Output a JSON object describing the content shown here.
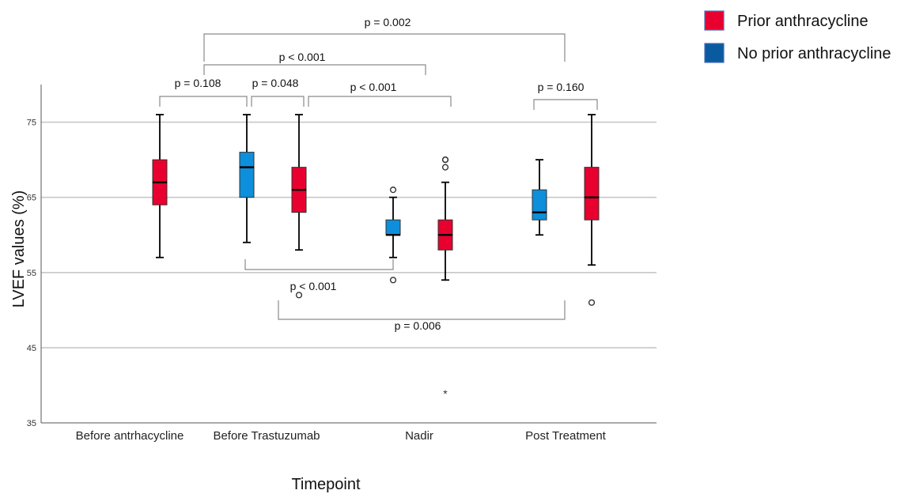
{
  "chart_data": {
    "type": "box",
    "ylabel": "LVEF values (%)",
    "xlabel": "Timepoint",
    "ylim": [
      35,
      80
    ],
    "yticks": [
      35,
      45,
      55,
      65,
      75
    ],
    "categories": [
      "Before antrhacycline",
      "Before Trastuzumab",
      "Nadir",
      "Post Treatment"
    ],
    "grid": true,
    "legend_position": "top-right",
    "series": [
      {
        "name": "Prior anthracycline",
        "color": "#e8002f"
      },
      {
        "name": "No prior anthracycline",
        "color": "#0d8fdb",
        "legend_color": "#0a5aa0"
      }
    ],
    "boxes": [
      {
        "category": "Before antrhacycline",
        "series": "Prior anthracycline",
        "min": 57,
        "q1": 64,
        "median": 67,
        "q3": 70,
        "max": 76,
        "outliers": [],
        "extremes": []
      },
      {
        "category": "Before Trastuzumab",
        "series": "No prior anthracycline",
        "min": 59,
        "q1": 65,
        "median": 69,
        "q3": 71,
        "max": 76,
        "outliers": [],
        "extremes": []
      },
      {
        "category": "Before Trastuzumab",
        "series": "Prior anthracycline",
        "min": 58,
        "q1": 63,
        "median": 66,
        "q3": 69,
        "max": 76,
        "outliers": [
          52
        ],
        "extremes": []
      },
      {
        "category": "Nadir",
        "series": "No prior anthracycline",
        "min": 57,
        "q1": 60,
        "median": 60,
        "q3": 62,
        "max": 65,
        "outliers": [
          66,
          54
        ],
        "extremes": []
      },
      {
        "category": "Nadir",
        "series": "Prior anthracycline",
        "min": 54,
        "q1": 58,
        "median": 60,
        "q3": 62,
        "max": 67,
        "outliers": [
          70,
          70,
          69
        ],
        "extremes": [
          39
        ]
      },
      {
        "category": "Post Treatment",
        "series": "No prior anthracycline",
        "min": 60,
        "q1": 62,
        "median": 63,
        "q3": 66,
        "max": 70,
        "outliers": [],
        "extremes": []
      },
      {
        "category": "Post Treatment",
        "series": "Prior anthracycline",
        "min": 56,
        "q1": 62,
        "median": 65,
        "q3": 69,
        "max": 76,
        "outliers": [
          51
        ],
        "extremes": []
      }
    ],
    "annotations": [
      {
        "label": "p = 0.002",
        "from": "Before Trastuzumab / No prior anthracycline",
        "to": "Post Treatment / No prior anthracycline"
      },
      {
        "label": "p < 0.001",
        "from": "Before Trastuzumab / No prior anthracycline",
        "to": "Nadir / Prior anthracycline"
      },
      {
        "label": "p = 0.108",
        "from": "Before antrhacycline / Prior anthracycline",
        "to": "Before Trastuzumab / No prior anthracycline"
      },
      {
        "label": "p = 0.048",
        "from": "Before Trastuzumab / No prior anthracycline",
        "to": "Before Trastuzumab / Prior anthracycline"
      },
      {
        "label": "p < 0.001",
        "from": "Before Trastuzumab / Prior anthracycline",
        "to": "Nadir / Prior anthracycline"
      },
      {
        "label": "p = 0.160",
        "from": "Post Treatment / No prior anthracycline",
        "to": "Post Treatment / Prior anthracycline"
      },
      {
        "label": "p < 0.001",
        "from": "Before Trastuzumab / No prior anthracycline",
        "to": "Nadir / No prior anthracycline"
      },
      {
        "label": "p = 0.006",
        "from": "Before Trastuzumab / Prior anthracycline",
        "to": "Post Treatment / Prior anthracycline"
      }
    ]
  }
}
